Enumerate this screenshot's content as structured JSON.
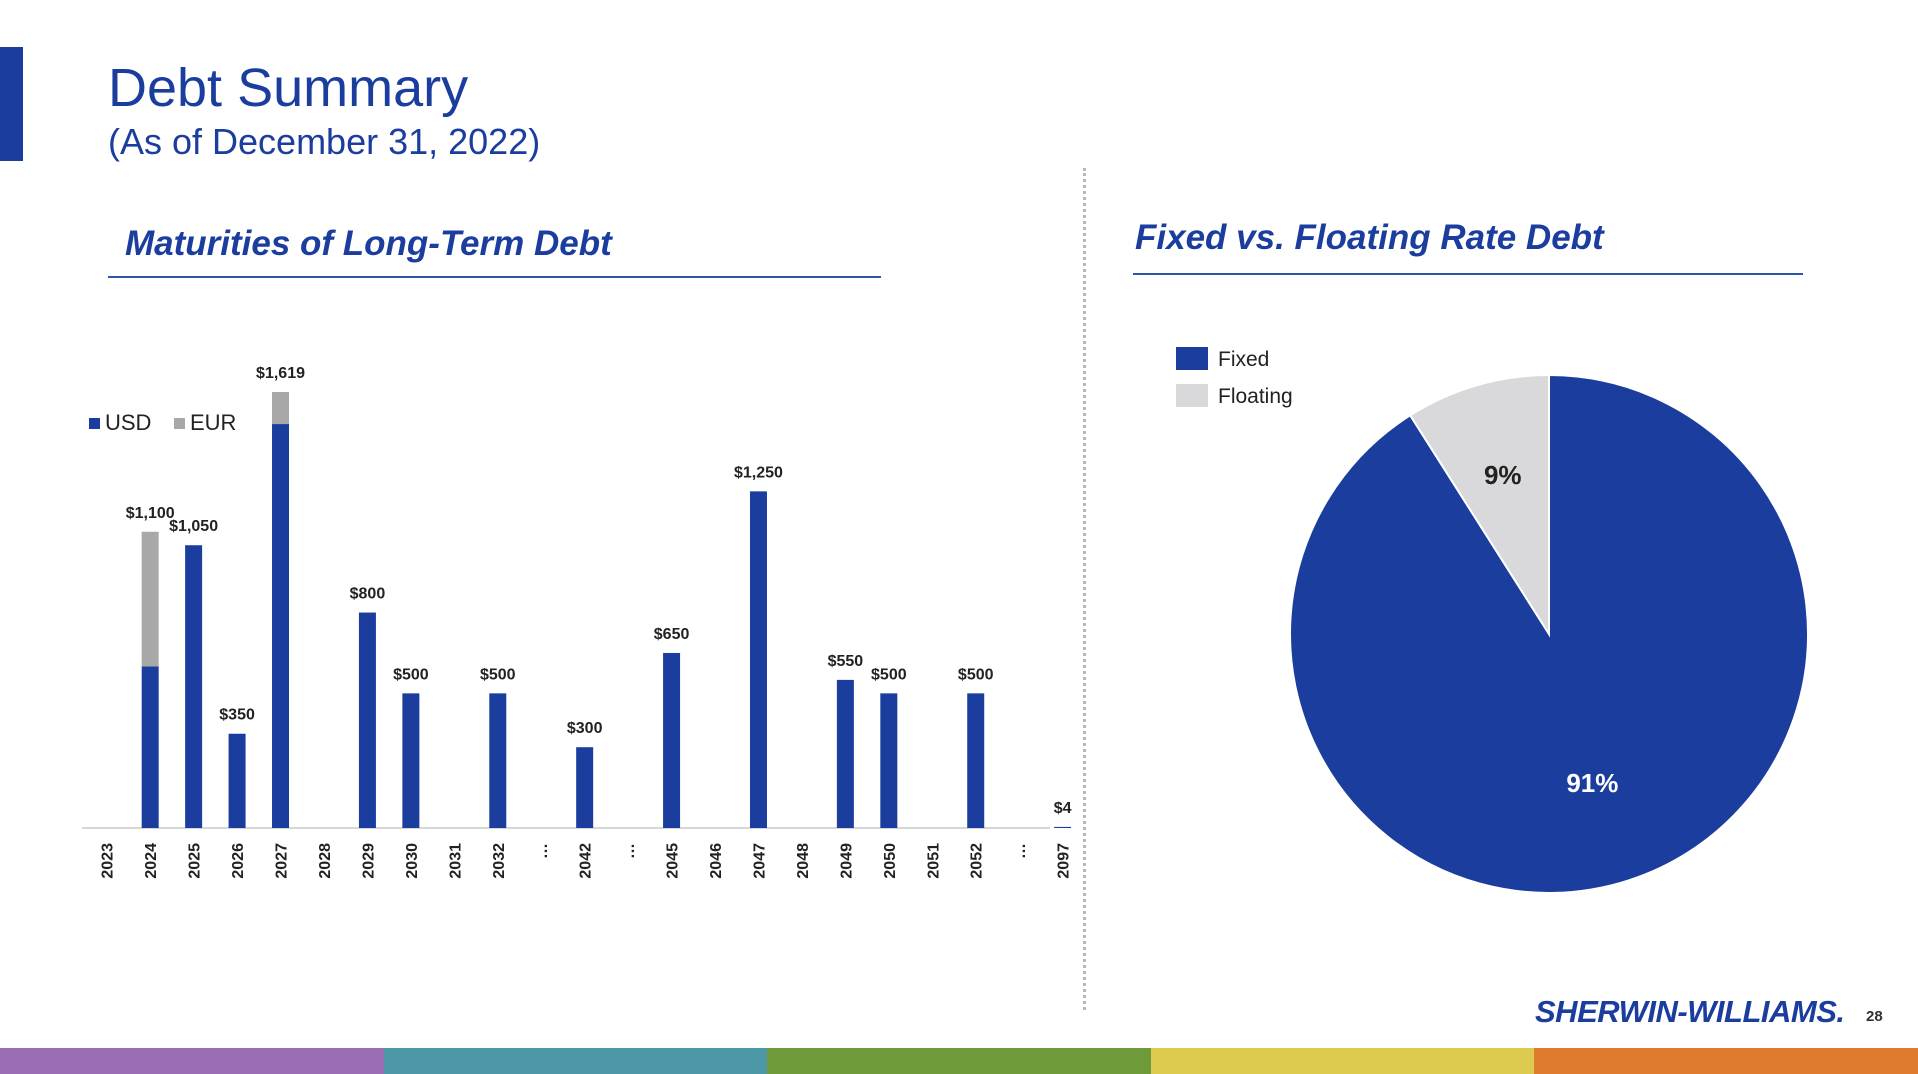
{
  "header": {
    "title": "Debt Summary",
    "subtitle": "(As of December 31, 2022)"
  },
  "left_section": {
    "title": "Maturities of Long-Term Debt"
  },
  "right_section": {
    "title": "Fixed vs. Floating Rate Debt"
  },
  "footer": {
    "logo_text": "SHERWIN-WILLIAMS.",
    "page_number": "28",
    "strip_colors": [
      "#9b6db4",
      "#4d98a6",
      "#6f9a3a",
      "#dccb4e",
      "#e07a2e"
    ]
  },
  "colors": {
    "usd": "#1a3d9e",
    "eur": "#a8a8a8",
    "fixed": "#1a3d9e",
    "floating": "#d9d9db",
    "accent": "#1a3d9e"
  },
  "chart_data": [
    {
      "type": "bar",
      "stacked": true,
      "title": "Maturities of Long-Term Debt",
      "categories": [
        "2023",
        "2024",
        "2025",
        "2026",
        "2027",
        "2028",
        "2029",
        "2030",
        "2031",
        "2032",
        "…",
        "2042",
        "…",
        "2045",
        "2046",
        "2047",
        "2048",
        "2049",
        "2050",
        "2051",
        "2052",
        "…",
        "2097"
      ],
      "series": [
        {
          "name": "USD",
          "values": [
            0,
            600,
            1050,
            350,
            1500,
            0,
            800,
            500,
            0,
            500,
            0,
            300,
            0,
            650,
            0,
            1250,
            0,
            550,
            500,
            0,
            500,
            0,
            4
          ]
        },
        {
          "name": "EUR",
          "values": [
            0,
            500,
            0,
            0,
            119,
            0,
            0,
            0,
            0,
            0,
            0,
            0,
            0,
            0,
            0,
            0,
            0,
            0,
            0,
            0,
            0,
            0,
            0
          ]
        }
      ],
      "data_labels": [
        "",
        "$1,100",
        "$1,050",
        "$350",
        "$1,619",
        "",
        "$800",
        "$500",
        "",
        "$500",
        "",
        "$300",
        "",
        "$650",
        "",
        "$1,250",
        "",
        "$550",
        "$500",
        "",
        "$500",
        "",
        "$4"
      ],
      "ylim": [
        0,
        1619
      ],
      "legend": {
        "position": "top-left"
      },
      "grid": false
    },
    {
      "type": "pie",
      "title": "Fixed vs. Floating Rate Debt",
      "labels": [
        "Fixed",
        "Floating"
      ],
      "values": [
        91,
        9
      ],
      "value_labels": [
        "91%",
        "9%"
      ],
      "legend": {
        "position": "top-left"
      }
    }
  ]
}
